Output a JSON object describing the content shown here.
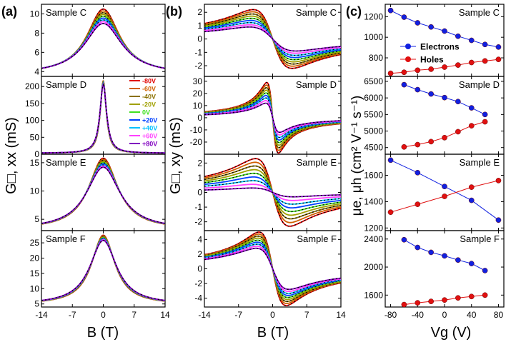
{
  "figure": {
    "panel_labels": [
      "(a)",
      "(b)",
      "(c)"
    ],
    "sample_names": [
      "Sample C",
      "Sample D",
      "Sample E",
      "Sample F"
    ],
    "x_label_ab": "B (T)",
    "x_label_c": "Vg (V)",
    "y_label_a": "G□, xx (mS)",
    "y_label_b": "G□, xy (mS)",
    "y_label_c": "μe, μh (cm² V⁻¹ s⁻¹)",
    "legend_gate": [
      "-80V",
      "-60V",
      "-40V",
      "-20V",
      "0V",
      "+20V",
      "+40V",
      "+60V",
      "+80V"
    ],
    "legend_gate_colors": [
      "#e00000",
      "#d06000",
      "#8a7000",
      "#a0a000",
      "#40e020",
      "#0040ff",
      "#00c0ff",
      "#ff40ff",
      "#8000c0"
    ],
    "legend_carrier": [
      "Electrons",
      "Holes"
    ],
    "carrier_colors": {
      "electrons": "#1020e0",
      "holes": "#e01010"
    }
  },
  "chart_data": [
    {
      "type": "line",
      "panel": "(a)",
      "title": "Sample C",
      "xlabel": "B (T)",
      "ylabel": "G□, xx (mS)",
      "xlim": [
        -14,
        14
      ],
      "ylim": [
        3.5,
        11
      ],
      "x_ticks": [
        -14,
        -7,
        0,
        7,
        14
      ],
      "y_ticks": [
        4,
        6,
        8,
        10
      ],
      "curve": {
        "peak_max": 10.5,
        "peak_min": 9.0,
        "base": 3.7,
        "width": 4.5
      },
      "series": [
        "-80V",
        "-60V",
        "-40V",
        "-20V",
        "0V",
        "+20V",
        "+40V",
        "+60V",
        "+80V"
      ]
    },
    {
      "type": "line",
      "panel": "(a)",
      "title": "Sample D",
      "xlim": [
        -14,
        14
      ],
      "ylim": [
        0,
        230
      ],
      "y_ticks": [
        0,
        50,
        100,
        150,
        200
      ],
      "curve": {
        "peak_max": 218,
        "peak_min": 205,
        "base": 3,
        "width": 0.8
      },
      "series": [
        "-80V",
        "-60V",
        "-40V",
        "-20V",
        "0V",
        "+20V",
        "+40V",
        "+60V",
        "+80V"
      ]
    },
    {
      "type": "line",
      "panel": "(a)",
      "title": "Sample E",
      "xlim": [
        -14,
        14
      ],
      "ylim": [
        3,
        16.5
      ],
      "y_ticks": [
        5,
        10,
        15
      ],
      "curve": {
        "peak_max": 15.8,
        "peak_min": 14.2,
        "base": 3.2,
        "width": 4.0
      },
      "series": [
        "-80V",
        "-60V",
        "-40V",
        "-20V",
        "0V",
        "+20V",
        "+40V",
        "+60V",
        "+80V"
      ]
    },
    {
      "type": "line",
      "panel": "(a)",
      "title": "Sample F",
      "xlim": [
        -14,
        14
      ],
      "ylim": [
        4,
        29
      ],
      "y_ticks": [
        5,
        10,
        15,
        20,
        25
      ],
      "curve": {
        "peak_max": 27.5,
        "peak_min": 25.8,
        "base": 4.8,
        "width": 3.2
      },
      "series": [
        "-80V",
        "-60V",
        "-40V",
        "-20V",
        "0V",
        "+20V",
        "+40V",
        "+60V",
        "+80V"
      ]
    },
    {
      "type": "line",
      "panel": "(b)",
      "title": "Sample C",
      "xlabel": "B (T)",
      "ylabel": "G□, xy (mS)",
      "xlim": [
        -14,
        14
      ],
      "ylim": [
        -2.8,
        2.6
      ],
      "x_ticks": [
        -14,
        -7,
        0,
        7,
        14
      ],
      "y_ticks": [
        -2,
        -1,
        0,
        1,
        2
      ],
      "curve": {
        "amp_max": 2.2,
        "amp_min": 0.9,
        "width": 4.0,
        "asym": 0.0
      },
      "series": [
        "-80V",
        "-60V",
        "-40V",
        "-20V",
        "0V",
        "+20V",
        "+40V",
        "+60V",
        "+80V"
      ]
    },
    {
      "type": "line",
      "panel": "(b)",
      "title": "Sample D",
      "xlim": [
        -14,
        14
      ],
      "ylim": [
        -30,
        34
      ],
      "y_ticks": [
        -20,
        -10,
        0,
        10,
        20,
        30
      ],
      "curve": {
        "amp_max": 29,
        "amp_min": 12,
        "width": 1.2,
        "asym": 0.0
      },
      "series": [
        "-80V",
        "-60V",
        "-40V",
        "-20V",
        "0V",
        "+20V",
        "+40V",
        "+60V",
        "+80V"
      ]
    },
    {
      "type": "line",
      "panel": "(b)",
      "title": "Sample E",
      "xlim": [
        -14,
        14
      ],
      "ylim": [
        -2.6,
        2.6
      ],
      "y_ticks": [
        -2,
        -1,
        0,
        1,
        2
      ],
      "curve": {
        "amp_max": 2.3,
        "amp_min": 0.3,
        "width": 3.5,
        "asym": 0.0
      },
      "series": [
        "-80V",
        "-60V",
        "-40V",
        "-20V",
        "0V",
        "+20V",
        "+40V",
        "+60V",
        "+80V"
      ]
    },
    {
      "type": "line",
      "panel": "(b)",
      "title": "Sample F",
      "xlim": [
        -14,
        14
      ],
      "ylim": [
        -5.2,
        5.2
      ],
      "y_ticks": [
        -4,
        -2,
        0,
        2,
        4
      ],
      "curve": {
        "amp_max": 5.0,
        "amp_min": 2.8,
        "width": 2.8,
        "asym": 0.0
      },
      "series": [
        "-80V",
        "-60V",
        "-40V",
        "-20V",
        "0V",
        "+20V",
        "+40V",
        "+60V",
        "+80V"
      ]
    },
    {
      "type": "scatter",
      "panel": "(c)",
      "title": "Sample C",
      "xlabel": "Vg (V)",
      "ylabel": "μe, μh (cm² V⁻¹ s⁻¹)",
      "xlim": [
        -88,
        88
      ],
      "ylim": [
        620,
        1320
      ],
      "x_ticks": [
        -80,
        -40,
        0,
        40,
        80
      ],
      "y_ticks": [
        800,
        1000,
        1200
      ],
      "series": [
        {
          "name": "Electrons",
          "x": [
            -80,
            -60,
            -40,
            -20,
            0,
            20,
            40,
            60,
            80
          ],
          "values": [
            1260,
            1195,
            1140,
            1100,
            1060,
            1010,
            970,
            930,
            905
          ]
        },
        {
          "name": "Holes",
          "x": [
            -80,
            -60,
            -40,
            -20,
            0,
            20,
            40,
            60,
            80
          ],
          "values": [
            650,
            660,
            680,
            690,
            710,
            730,
            755,
            770,
            785
          ]
        }
      ]
    },
    {
      "type": "scatter",
      "panel": "(c)",
      "title": "Sample D",
      "xlim": [
        -88,
        88
      ],
      "ylim": [
        4300,
        6650
      ],
      "y_ticks": [
        4500,
        5000,
        5500,
        6000,
        6500
      ],
      "series": [
        {
          "name": "Electrons",
          "x": [
            -60,
            -40,
            -20,
            0,
            20,
            40,
            60
          ],
          "values": [
            6400,
            6250,
            6120,
            6010,
            5890,
            5700,
            5500
          ]
        },
        {
          "name": "Holes",
          "x": [
            -60,
            -40,
            -20,
            0,
            20,
            40,
            60
          ],
          "values": [
            4520,
            4590,
            4680,
            4800,
            4980,
            5160,
            5280
          ]
        }
      ]
    },
    {
      "type": "scatter",
      "panel": "(c)",
      "title": "Sample E",
      "xlim": [
        -88,
        88
      ],
      "ylim": [
        1180,
        1760
      ],
      "y_ticks": [
        1200,
        1400,
        1600
      ],
      "series": [
        {
          "name": "Electrons",
          "x": [
            -80,
            -40,
            0,
            40,
            80
          ],
          "values": [
            1715,
            1620,
            1515,
            1410,
            1260
          ]
        },
        {
          "name": "Holes",
          "x": [
            -80,
            -40,
            0,
            40,
            80
          ],
          "values": [
            1320,
            1380,
            1440,
            1510,
            1560
          ]
        }
      ]
    },
    {
      "type": "scatter",
      "panel": "(c)",
      "title": "Sample F",
      "xlim": [
        -88,
        88
      ],
      "ylim": [
        1430,
        2520
      ],
      "y_ticks": [
        1600,
        2000,
        2400
      ],
      "series": [
        {
          "name": "Electrons",
          "x": [
            -60,
            -40,
            -20,
            0,
            20,
            40,
            60
          ],
          "values": [
            2390,
            2280,
            2210,
            2160,
            2100,
            2050,
            1950
          ]
        },
        {
          "name": "Holes",
          "x": [
            -60,
            -40,
            -20,
            0,
            20,
            40,
            60
          ],
          "values": [
            1465,
            1490,
            1510,
            1530,
            1560,
            1580,
            1600
          ]
        }
      ]
    }
  ]
}
